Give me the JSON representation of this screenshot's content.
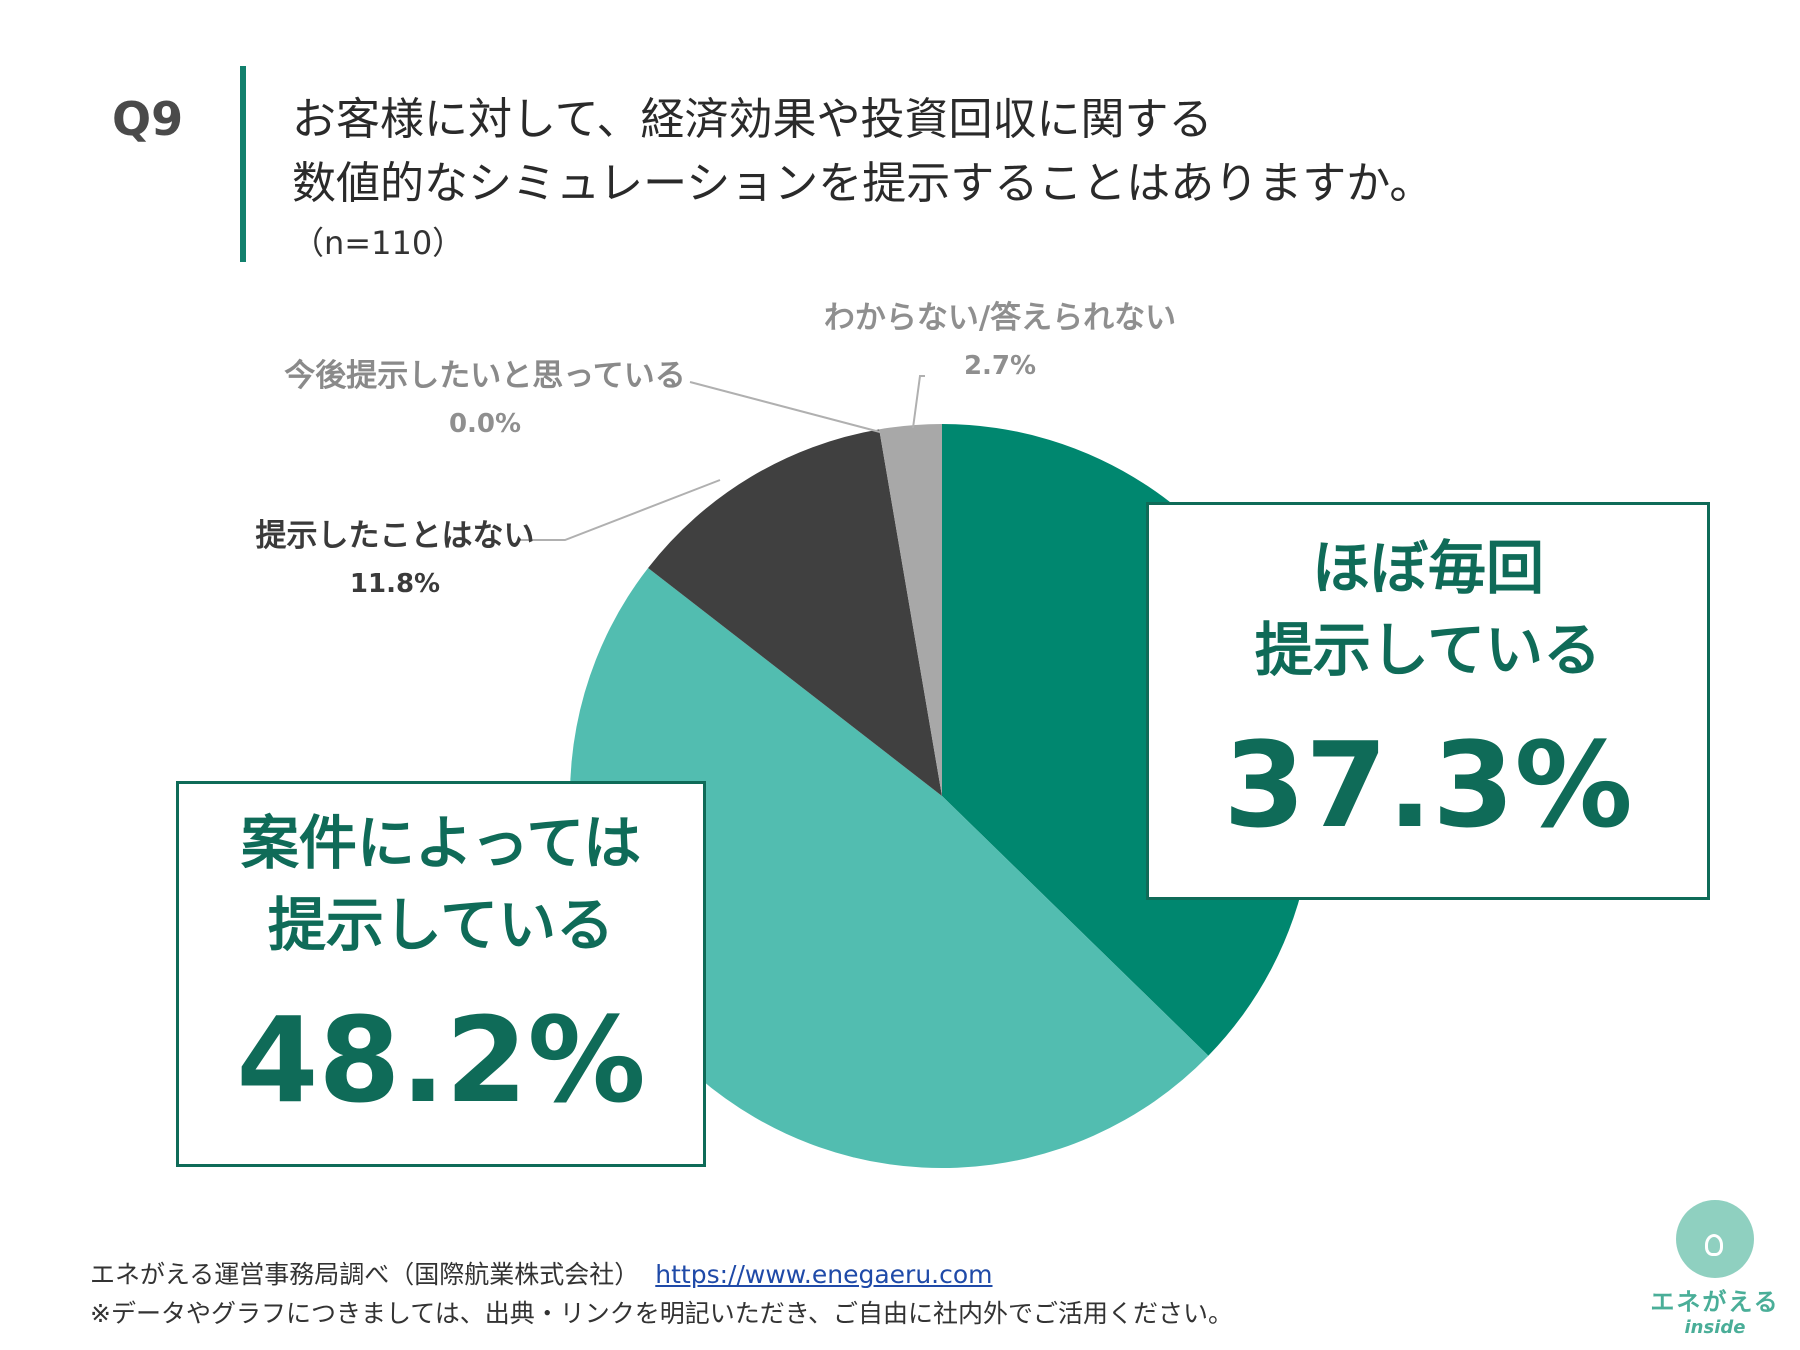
{
  "header": {
    "question_no": "Q9",
    "title_line1": "お客様に対して、経済効果や投資回収に関する",
    "title_line2": "数値的なシミュレーションを提示することはありますか。",
    "sample_size": "（n=110）"
  },
  "chart_data": {
    "type": "pie",
    "title": "お客様に対して、経済効果や投資回収に関する数値的なシミュレーションを提示することはありますか。",
    "start": "12 o'clock, clockwise",
    "slices": [
      {
        "label": "ほぼ毎回提示している",
        "value": 37.3,
        "color": "#00876f"
      },
      {
        "label": "案件によっては提示している",
        "value": 48.2,
        "color": "#52bdb0"
      },
      {
        "label": "提示したことはない",
        "value": 11.8,
        "color": "#404040"
      },
      {
        "label": "今後提示したいと思っている",
        "value": 0.0,
        "color": "#bdbdbd"
      },
      {
        "label": "わからない/答えられない",
        "value": 2.7,
        "color": "#a8a8a8"
      }
    ]
  },
  "labels": {
    "unknown": {
      "name": "わからない/答えられない",
      "pct": "2.7%"
    },
    "future": {
      "name": "今後提示したいと思っている",
      "pct": "0.0%"
    },
    "never": {
      "name": "提示したことはない",
      "pct": "11.8%"
    }
  },
  "callouts": {
    "every_time": {
      "line1": "ほぼ毎回",
      "line2": "提示している",
      "pct": "37.3%"
    },
    "depends": {
      "line1": "案件によっては",
      "line2": "提示している",
      "pct": "48.2%"
    }
  },
  "footer": {
    "source": "エネがえる運営事務局調べ（国際航業株式会社）",
    "link": "https://www.enegaeru.com",
    "note": "※データやグラフにつきましては、出典・リンクを明記いただき、ご自由に社内外でご活用ください。"
  },
  "logo": {
    "name": "エネがえる",
    "sub": "inside"
  }
}
